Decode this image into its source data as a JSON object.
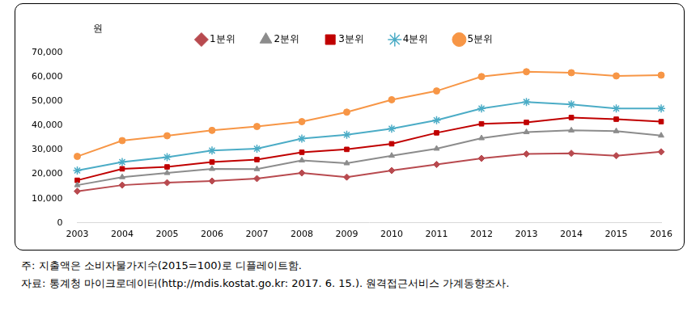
{
  "chart_data": {
    "type": "line",
    "y_label": "원",
    "categories": [
      "2003",
      "2004",
      "2005",
      "2006",
      "2007",
      "2008",
      "2009",
      "2010",
      "2011",
      "2012",
      "2013",
      "2014",
      "2015",
      "2016"
    ],
    "series": [
      {
        "name": "1분위",
        "color": "#b84a4f",
        "marker": "diamond",
        "values": [
          13000,
          15500,
          16500,
          17200,
          18200,
          20500,
          18800,
          21500,
          24000,
          26500,
          28300,
          28600,
          27600,
          29200
        ]
      },
      {
        "name": "2분위",
        "color": "#8c8c8c",
        "marker": "triangle",
        "values": [
          15500,
          18800,
          20500,
          22200,
          22100,
          25700,
          24500,
          27600,
          30500,
          34800,
          37300,
          38000,
          37700,
          35900
        ]
      },
      {
        "name": "3분위",
        "color": "#c00000",
        "marker": "square",
        "values": [
          17500,
          22200,
          23000,
          25000,
          26000,
          29000,
          30200,
          32500,
          37000,
          40700,
          41300,
          43300,
          42600,
          41600
        ]
      },
      {
        "name": "4분위",
        "color": "#4bacc6",
        "marker": "star",
        "values": [
          21500,
          25000,
          27000,
          29700,
          30500,
          34600,
          36200,
          38700,
          42200,
          47000,
          49700,
          48700,
          47000,
          47000
        ]
      },
      {
        "name": "5분위",
        "color": "#f79646",
        "marker": "circle",
        "values": [
          27300,
          33800,
          35800,
          38000,
          39600,
          41600,
          45500,
          50600,
          54200,
          60100,
          62100,
          61700,
          60400,
          60700
        ]
      }
    ],
    "ylim": [
      0,
      70000
    ],
    "yticks": [
      0,
      {
        "value": 10000,
        "label": "10,000"
      },
      {
        "value": 20000,
        "label": "20,000"
      },
      {
        "value": 30000,
        "label": "30,000"
      },
      {
        "value": 40000,
        "label": "40,000"
      },
      {
        "value": 50000,
        "label": "50,000"
      },
      {
        "value": 60000,
        "label": "60,000"
      },
      {
        "value": 70000,
        "label": "70,000"
      }
    ],
    "grid": false,
    "legend": "top",
    "notes": [
      "주: 지출액은 소비자물가지수(2015=100)로 디플레이트함.",
      "자료: 통계청 마이크로데이터(http://mdis.kostat.go.kr: 2017. 6. 15.). 원격접근서비스 가계동향조사."
    ]
  }
}
